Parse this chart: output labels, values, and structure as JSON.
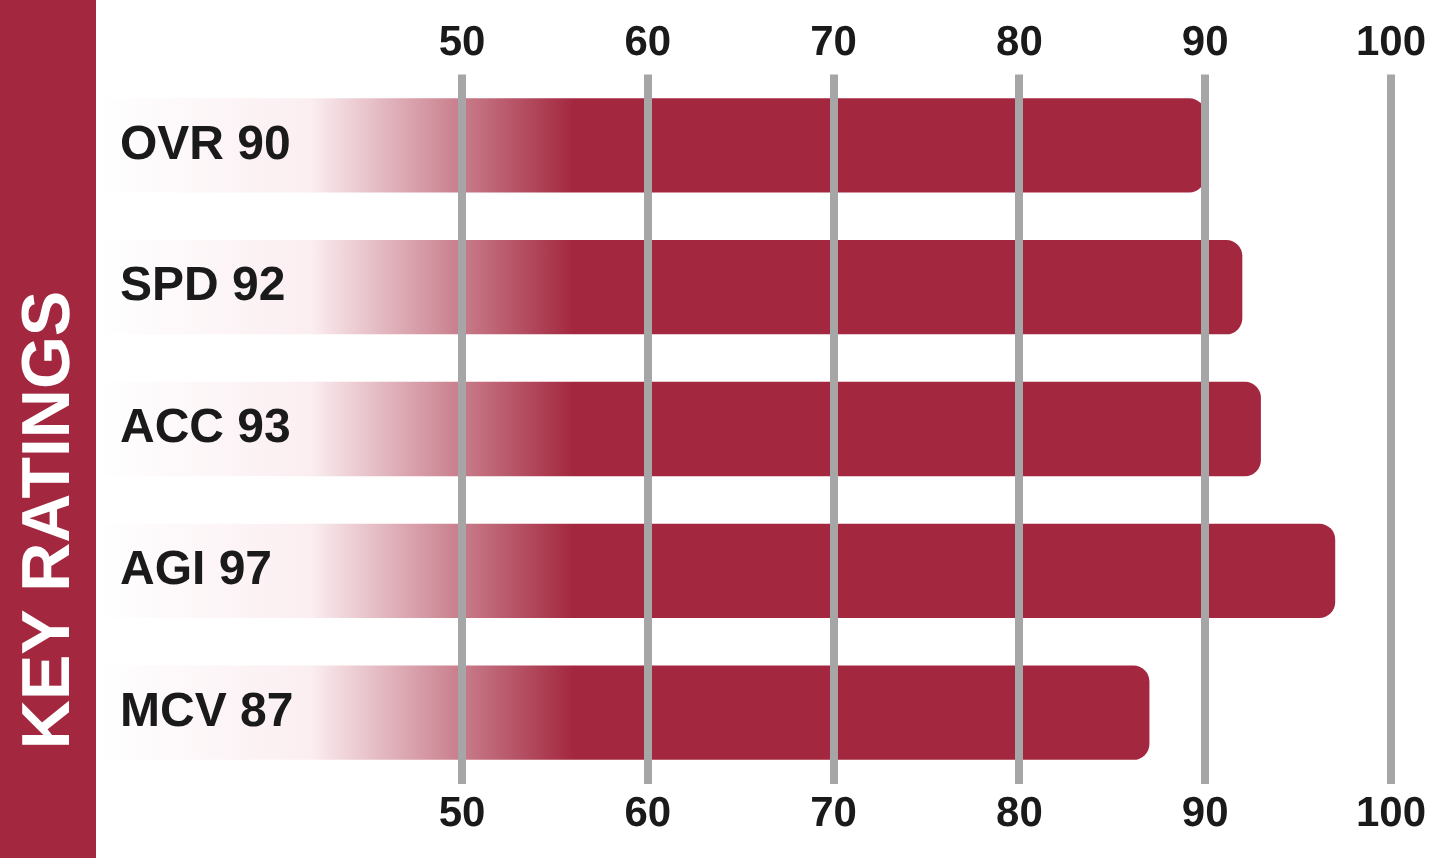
{
  "chart_data": {
    "type": "bar",
    "orientation": "horizontal",
    "title": "KEY RATINGS",
    "categories": [
      "OVR 90",
      "SPD 92",
      "ACC 93",
      "AGI 97",
      "MCV 87"
    ],
    "values": [
      90,
      92,
      93,
      97,
      87
    ],
    "color": "#a3283f",
    "xlim": [
      50,
      100
    ],
    "xticks": [
      50,
      60,
      70,
      80,
      90,
      100
    ],
    "x2lim": [
      50,
      100
    ],
    "x2ticks": [
      50,
      60,
      70,
      80,
      90,
      100
    ],
    "grid": "x",
    "legend": false
  }
}
